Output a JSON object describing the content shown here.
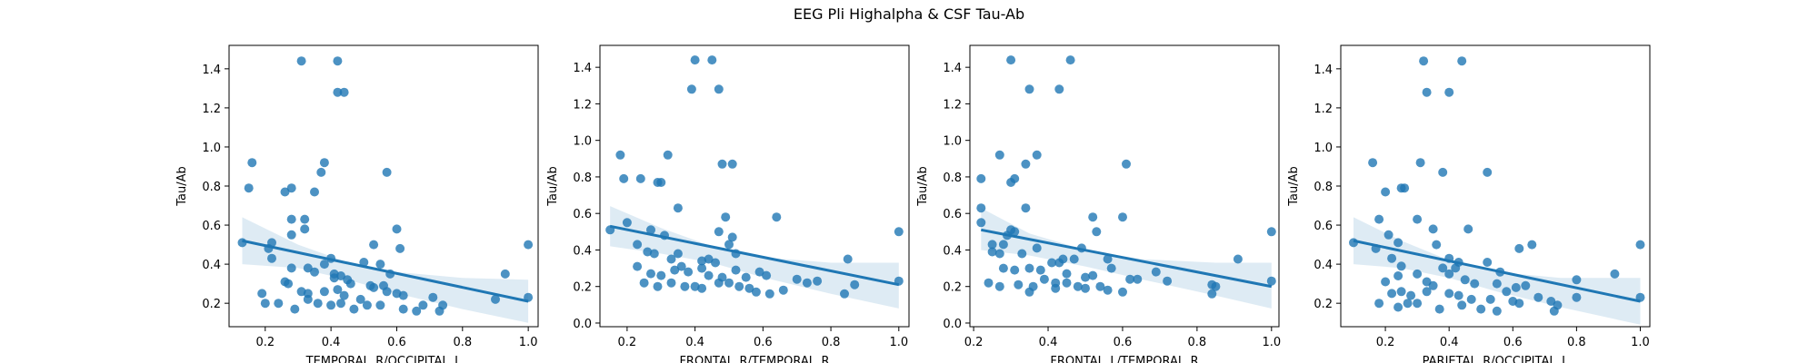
{
  "figure": {
    "title": "EEG Pli Highalpha & CSF Tau-Ab"
  },
  "colors": {
    "points": "#1f77b4",
    "line": "#1f77b4",
    "band": "#1f77b4"
  },
  "chart_data": [
    {
      "type": "scatter",
      "xlabel": "TEMPORAL_R/OCCIPITAL_L",
      "ylabel": "Tau/Ab",
      "xlim": [
        0.09,
        1.03
      ],
      "ylim": [
        0.08,
        1.52
      ],
      "xticks": [
        0.2,
        0.4,
        0.6,
        0.8,
        1.0
      ],
      "xtick_labels": [
        "0.2",
        "0.4",
        "0.6",
        "0.8",
        "1.0"
      ],
      "yticks": [
        0.2,
        0.4,
        0.6,
        0.8,
        1.0,
        1.2,
        1.4
      ],
      "ytick_labels": [
        "0.2",
        "0.4",
        "0.6",
        "0.8",
        "1.0",
        "1.2",
        "1.4"
      ],
      "regression": {
        "x": [
          0.13,
          1.0
        ],
        "y": [
          0.52,
          0.21
        ]
      },
      "ci_band": {
        "x": [
          0.13,
          0.3,
          0.45,
          0.6,
          0.8,
          1.0
        ],
        "upper": [
          0.64,
          0.5,
          0.41,
          0.36,
          0.33,
          0.32
        ],
        "lower": [
          0.4,
          0.38,
          0.32,
          0.25,
          0.17,
          0.1
        ]
      },
      "points": [
        [
          0.31,
          1.44
        ],
        [
          0.42,
          1.44
        ],
        [
          0.42,
          1.28
        ],
        [
          0.44,
          1.28
        ],
        [
          0.16,
          0.92
        ],
        [
          0.15,
          0.79
        ],
        [
          0.38,
          0.92
        ],
        [
          0.37,
          0.87
        ],
        [
          0.57,
          0.87
        ],
        [
          0.28,
          0.79
        ],
        [
          0.26,
          0.77
        ],
        [
          0.35,
          0.77
        ],
        [
          0.28,
          0.63
        ],
        [
          0.32,
          0.63
        ],
        [
          0.32,
          0.58
        ],
        [
          0.6,
          0.58
        ],
        [
          0.28,
          0.55
        ],
        [
          0.13,
          0.51
        ],
        [
          0.22,
          0.51
        ],
        [
          0.21,
          0.48
        ],
        [
          0.53,
          0.5
        ],
        [
          0.61,
          0.48
        ],
        [
          0.22,
          0.43
        ],
        [
          0.4,
          0.43
        ],
        [
          0.38,
          0.4
        ],
        [
          0.5,
          0.41
        ],
        [
          0.55,
          0.4
        ],
        [
          0.28,
          0.38
        ],
        [
          0.33,
          0.38
        ],
        [
          0.35,
          0.36
        ],
        [
          0.41,
          0.35
        ],
        [
          0.43,
          0.34
        ],
        [
          0.45,
          0.32
        ],
        [
          0.26,
          0.31
        ],
        [
          0.41,
          0.33
        ],
        [
          0.58,
          0.35
        ],
        [
          0.46,
          0.3
        ],
        [
          0.52,
          0.29
        ],
        [
          0.53,
          0.28
        ],
        [
          0.56,
          0.29
        ],
        [
          0.6,
          0.25
        ],
        [
          0.62,
          0.24
        ],
        [
          0.27,
          0.3
        ],
        [
          0.31,
          0.26
        ],
        [
          0.33,
          0.25
        ],
        [
          0.38,
          0.26
        ],
        [
          0.42,
          0.27
        ],
        [
          0.44,
          0.24
        ],
        [
          0.49,
          0.22
        ],
        [
          0.19,
          0.25
        ],
        [
          0.2,
          0.2
        ],
        [
          0.24,
          0.2
        ],
        [
          0.29,
          0.17
        ],
        [
          0.33,
          0.22
        ],
        [
          0.36,
          0.2
        ],
        [
          0.4,
          0.19
        ],
        [
          0.43,
          0.2
        ],
        [
          0.47,
          0.17
        ],
        [
          0.51,
          0.19
        ],
        [
          0.55,
          0.19
        ],
        [
          0.57,
          0.26
        ],
        [
          0.62,
          0.17
        ],
        [
          0.66,
          0.16
        ],
        [
          0.68,
          0.19
        ],
        [
          0.71,
          0.23
        ],
        [
          0.74,
          0.19
        ],
        [
          0.73,
          0.16
        ],
        [
          0.9,
          0.22
        ],
        [
          0.93,
          0.35
        ],
        [
          1.0,
          0.5
        ],
        [
          1.0,
          0.23
        ]
      ]
    },
    {
      "type": "scatter",
      "xlabel": "FRONTAL_R/TEMPORAL_R",
      "ylabel": "Tau/Ab",
      "xlim": [
        0.12,
        1.03
      ],
      "ylim": [
        -0.02,
        1.52
      ],
      "xticks": [
        0.2,
        0.4,
        0.6,
        0.8,
        1.0
      ],
      "xtick_labels": [
        "0.2",
        "0.4",
        "0.6",
        "0.8",
        "1.0"
      ],
      "yticks": [
        0.0,
        0.2,
        0.4,
        0.6,
        0.8,
        1.0,
        1.2,
        1.4
      ],
      "ytick_labels": [
        "0.0",
        "0.2",
        "0.4",
        "0.6",
        "0.8",
        "1.0",
        "1.2",
        "1.4"
      ],
      "regression": {
        "x": [
          0.15,
          1.0
        ],
        "y": [
          0.53,
          0.21
        ]
      },
      "ci_band": {
        "x": [
          0.15,
          0.3,
          0.45,
          0.6,
          0.8,
          1.0
        ],
        "upper": [
          0.64,
          0.52,
          0.42,
          0.36,
          0.33,
          0.33
        ],
        "lower": [
          0.42,
          0.38,
          0.33,
          0.25,
          0.16,
          0.08
        ]
      },
      "points": [
        [
          0.4,
          1.44
        ],
        [
          0.45,
          1.44
        ],
        [
          0.39,
          1.28
        ],
        [
          0.47,
          1.28
        ],
        [
          0.18,
          0.92
        ],
        [
          0.32,
          0.92
        ],
        [
          0.19,
          0.79
        ],
        [
          0.24,
          0.79
        ],
        [
          0.29,
          0.77
        ],
        [
          0.3,
          0.77
        ],
        [
          0.48,
          0.87
        ],
        [
          0.51,
          0.87
        ],
        [
          0.35,
          0.63
        ],
        [
          0.64,
          0.58
        ],
        [
          0.2,
          0.55
        ],
        [
          0.15,
          0.51
        ],
        [
          0.27,
          0.51
        ],
        [
          0.49,
          0.58
        ],
        [
          0.47,
          0.5
        ],
        [
          0.31,
          0.48
        ],
        [
          0.51,
          0.47
        ],
        [
          0.5,
          0.43
        ],
        [
          0.23,
          0.43
        ],
        [
          0.26,
          0.39
        ],
        [
          0.28,
          0.38
        ],
        [
          0.35,
          0.38
        ],
        [
          0.33,
          0.35
        ],
        [
          0.42,
          0.34
        ],
        [
          0.44,
          0.35
        ],
        [
          0.46,
          0.33
        ],
        [
          0.52,
          0.38
        ],
        [
          0.42,
          0.3
        ],
        [
          0.36,
          0.31
        ],
        [
          0.23,
          0.31
        ],
        [
          0.27,
          0.27
        ],
        [
          0.3,
          0.26
        ],
        [
          0.34,
          0.29
        ],
        [
          0.38,
          0.28
        ],
        [
          0.44,
          0.26
        ],
        [
          0.48,
          0.25
        ],
        [
          0.52,
          0.29
        ],
        [
          0.55,
          0.25
        ],
        [
          0.59,
          0.28
        ],
        [
          0.61,
          0.26
        ],
        [
          0.25,
          0.22
        ],
        [
          0.29,
          0.2
        ],
        [
          0.33,
          0.22
        ],
        [
          0.37,
          0.2
        ],
        [
          0.4,
          0.2
        ],
        [
          0.42,
          0.19
        ],
        [
          0.47,
          0.22
        ],
        [
          0.5,
          0.22
        ],
        [
          0.53,
          0.2
        ],
        [
          0.56,
          0.19
        ],
        [
          0.58,
          0.17
        ],
        [
          0.62,
          0.16
        ],
        [
          0.66,
          0.18
        ],
        [
          0.7,
          0.24
        ],
        [
          0.73,
          0.22
        ],
        [
          0.76,
          0.23
        ],
        [
          0.85,
          0.35
        ],
        [
          0.84,
          0.16
        ],
        [
          0.87,
          0.21
        ],
        [
          1.0,
          0.5
        ],
        [
          1.0,
          0.23
        ]
      ]
    },
    {
      "type": "scatter",
      "xlabel": "FRONTAL_L/TEMPORAL_R",
      "ylabel": "Tau/Ab",
      "xlim": [
        0.19,
        1.02
      ],
      "ylim": [
        -0.02,
        1.52
      ],
      "xticks": [
        0.2,
        0.4,
        0.6,
        0.8,
        1.0
      ],
      "xtick_labels": [
        "0.2",
        "0.4",
        "0.6",
        "0.8",
        "1.0"
      ],
      "yticks": [
        0.0,
        0.2,
        0.4,
        0.6,
        0.8,
        1.0,
        1.2,
        1.4
      ],
      "ytick_labels": [
        "0.0",
        "0.2",
        "0.4",
        "0.6",
        "0.8",
        "1.0",
        "1.2",
        "1.4"
      ],
      "regression": {
        "x": [
          0.22,
          1.0
        ],
        "y": [
          0.51,
          0.2
        ]
      },
      "ci_band": {
        "x": [
          0.22,
          0.35,
          0.5,
          0.65,
          0.85,
          1.0
        ],
        "upper": [
          0.63,
          0.49,
          0.4,
          0.35,
          0.33,
          0.33
        ],
        "lower": [
          0.4,
          0.37,
          0.31,
          0.24,
          0.15,
          0.08
        ]
      },
      "points": [
        [
          0.3,
          1.44
        ],
        [
          0.46,
          1.44
        ],
        [
          0.35,
          1.28
        ],
        [
          0.43,
          1.28
        ],
        [
          0.27,
          0.92
        ],
        [
          0.37,
          0.92
        ],
        [
          0.34,
          0.87
        ],
        [
          0.61,
          0.87
        ],
        [
          0.22,
          0.79
        ],
        [
          0.3,
          0.77
        ],
        [
          0.31,
          0.79
        ],
        [
          0.22,
          0.63
        ],
        [
          0.34,
          0.63
        ],
        [
          0.52,
          0.58
        ],
        [
          0.6,
          0.58
        ],
        [
          0.22,
          0.55
        ],
        [
          0.3,
          0.51
        ],
        [
          0.31,
          0.5
        ],
        [
          0.53,
          0.5
        ],
        [
          0.29,
          0.48
        ],
        [
          0.25,
          0.43
        ],
        [
          0.28,
          0.43
        ],
        [
          0.37,
          0.41
        ],
        [
          0.49,
          0.41
        ],
        [
          0.25,
          0.39
        ],
        [
          0.27,
          0.38
        ],
        [
          0.33,
          0.38
        ],
        [
          0.41,
          0.33
        ],
        [
          0.43,
          0.33
        ],
        [
          0.44,
          0.35
        ],
        [
          0.47,
          0.35
        ],
        [
          0.56,
          0.35
        ],
        [
          0.28,
          0.3
        ],
        [
          0.31,
          0.29
        ],
        [
          0.35,
          0.3
        ],
        [
          0.38,
          0.29
        ],
        [
          0.45,
          0.27
        ],
        [
          0.5,
          0.25
        ],
        [
          0.52,
          0.26
        ],
        [
          0.57,
          0.3
        ],
        [
          0.62,
          0.24
        ],
        [
          0.64,
          0.24
        ],
        [
          0.24,
          0.22
        ],
        [
          0.27,
          0.2
        ],
        [
          0.32,
          0.21
        ],
        [
          0.36,
          0.2
        ],
        [
          0.39,
          0.24
        ],
        [
          0.42,
          0.22
        ],
        [
          0.45,
          0.22
        ],
        [
          0.48,
          0.2
        ],
        [
          0.5,
          0.19
        ],
        [
          0.54,
          0.2
        ],
        [
          0.56,
          0.18
        ],
        [
          0.6,
          0.17
        ],
        [
          0.35,
          0.17
        ],
        [
          0.42,
          0.19
        ],
        [
          0.69,
          0.28
        ],
        [
          0.72,
          0.23
        ],
        [
          0.84,
          0.21
        ],
        [
          0.85,
          0.2
        ],
        [
          0.84,
          0.16
        ],
        [
          0.91,
          0.35
        ],
        [
          1.0,
          0.5
        ],
        [
          1.0,
          0.23
        ]
      ]
    },
    {
      "type": "scatter",
      "xlabel": "PARIETAL_R/OCCIPITAL_L",
      "ylabel": "Tau/Ab",
      "xlim": [
        0.06,
        1.03
      ],
      "ylim": [
        0.08,
        1.52
      ],
      "xticks": [
        0.2,
        0.4,
        0.6,
        0.8,
        1.0
      ],
      "xtick_labels": [
        "0.2",
        "0.4",
        "0.6",
        "0.8",
        "1.0"
      ],
      "yticks": [
        0.2,
        0.4,
        0.6,
        0.8,
        1.0,
        1.2,
        1.4
      ],
      "ytick_labels": [
        "0.2",
        "0.4",
        "0.6",
        "0.8",
        "1.0",
        "1.2",
        "1.4"
      ],
      "regression": {
        "x": [
          0.1,
          1.0
        ],
        "y": [
          0.52,
          0.21
        ]
      },
      "ci_band": {
        "x": [
          0.1,
          0.25,
          0.4,
          0.55,
          0.75,
          1.0
        ],
        "upper": [
          0.64,
          0.52,
          0.42,
          0.36,
          0.33,
          0.33
        ],
        "lower": [
          0.4,
          0.38,
          0.33,
          0.26,
          0.18,
          0.09
        ]
      },
      "points": [
        [
          0.32,
          1.44
        ],
        [
          0.44,
          1.44
        ],
        [
          0.33,
          1.28
        ],
        [
          0.4,
          1.28
        ],
        [
          0.16,
          0.92
        ],
        [
          0.31,
          0.92
        ],
        [
          0.38,
          0.87
        ],
        [
          0.52,
          0.87
        ],
        [
          0.25,
          0.79
        ],
        [
          0.26,
          0.79
        ],
        [
          0.2,
          0.77
        ],
        [
          0.18,
          0.63
        ],
        [
          0.3,
          0.63
        ],
        [
          0.35,
          0.58
        ],
        [
          0.46,
          0.58
        ],
        [
          0.21,
          0.55
        ],
        [
          0.1,
          0.51
        ],
        [
          0.24,
          0.51
        ],
        [
          0.17,
          0.48
        ],
        [
          0.36,
          0.5
        ],
        [
          0.62,
          0.48
        ],
        [
          0.66,
          0.5
        ],
        [
          0.22,
          0.43
        ],
        [
          0.4,
          0.43
        ],
        [
          0.43,
          0.41
        ],
        [
          0.52,
          0.41
        ],
        [
          0.25,
          0.39
        ],
        [
          0.38,
          0.38
        ],
        [
          0.42,
          0.38
        ],
        [
          0.24,
          0.34
        ],
        [
          0.3,
          0.35
        ],
        [
          0.4,
          0.35
        ],
        [
          0.45,
          0.32
        ],
        [
          0.56,
          0.36
        ],
        [
          0.2,
          0.31
        ],
        [
          0.33,
          0.31
        ],
        [
          0.35,
          0.29
        ],
        [
          0.48,
          0.3
        ],
        [
          0.55,
          0.3
        ],
        [
          0.61,
          0.28
        ],
        [
          0.64,
          0.29
        ],
        [
          0.22,
          0.25
        ],
        [
          0.25,
          0.26
        ],
        [
          0.28,
          0.24
        ],
        [
          0.33,
          0.26
        ],
        [
          0.4,
          0.25
        ],
        [
          0.43,
          0.24
        ],
        [
          0.47,
          0.22
        ],
        [
          0.53,
          0.22
        ],
        [
          0.58,
          0.26
        ],
        [
          0.6,
          0.21
        ],
        [
          0.18,
          0.2
        ],
        [
          0.24,
          0.18
        ],
        [
          0.27,
          0.2
        ],
        [
          0.3,
          0.2
        ],
        [
          0.37,
          0.17
        ],
        [
          0.44,
          0.19
        ],
        [
          0.5,
          0.17
        ],
        [
          0.55,
          0.16
        ],
        [
          0.62,
          0.2
        ],
        [
          0.68,
          0.23
        ],
        [
          0.72,
          0.21
        ],
        [
          0.74,
          0.19
        ],
        [
          0.73,
          0.16
        ],
        [
          0.8,
          0.32
        ],
        [
          0.8,
          0.23
        ],
        [
          0.92,
          0.35
        ],
        [
          1.0,
          0.5
        ],
        [
          1.0,
          0.23
        ]
      ]
    }
  ]
}
